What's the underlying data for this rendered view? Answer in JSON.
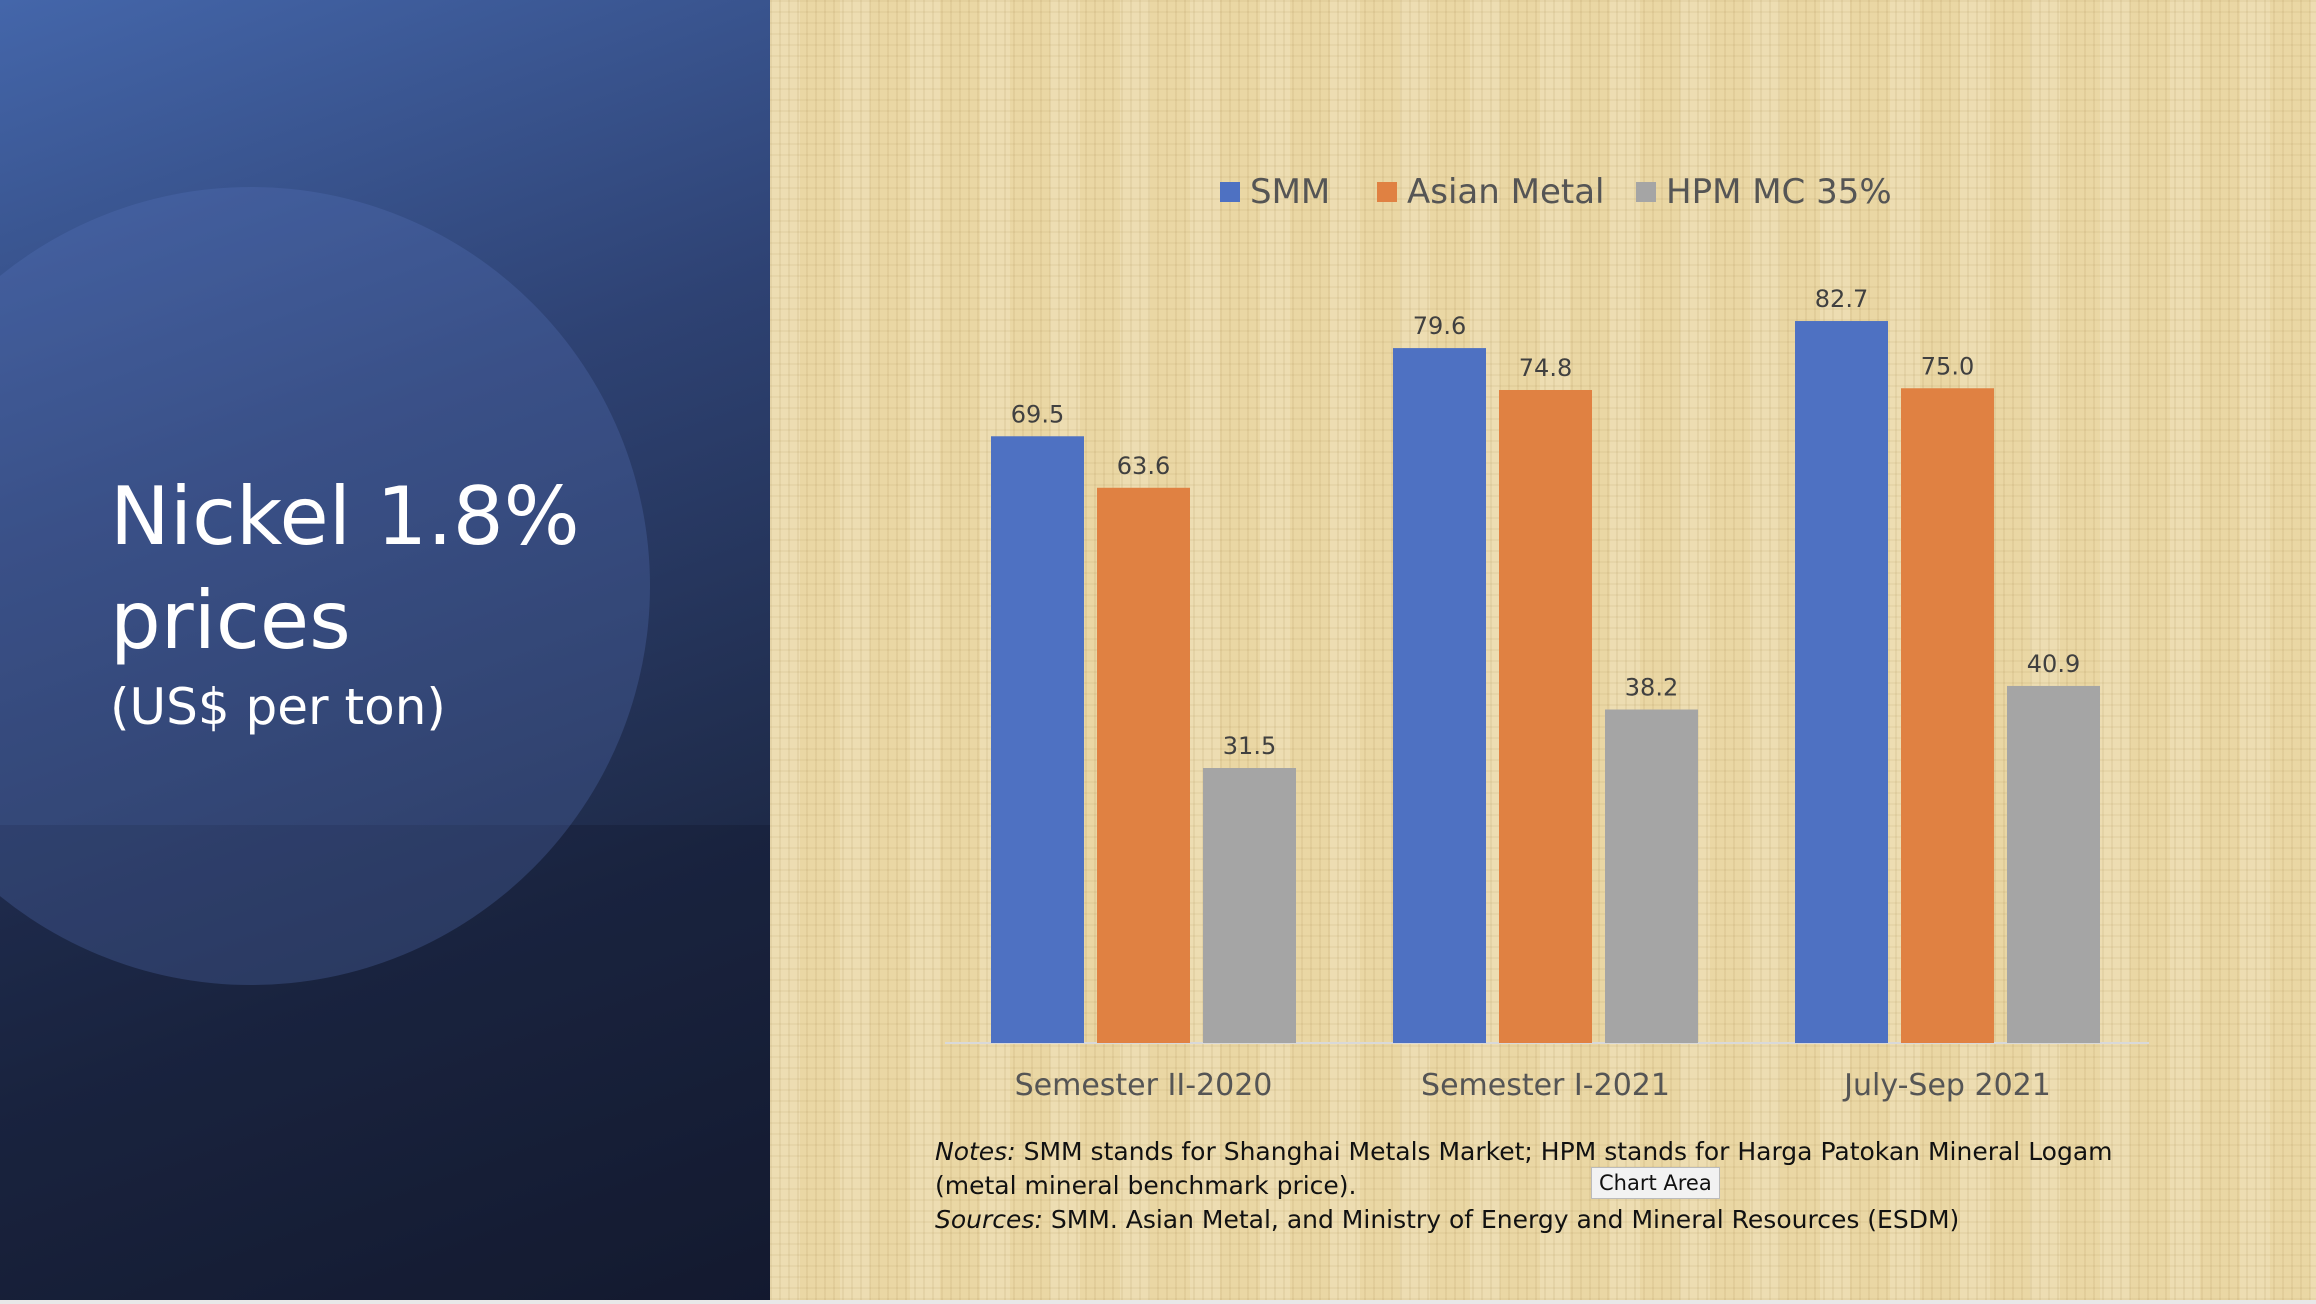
{
  "slide": {
    "title_line1": "Nickel 1.8%",
    "title_line2": "prices",
    "subtitle": "(US$ per ton)"
  },
  "notes": {
    "notes_label": "Notes:",
    "notes_text": " SMM stands for Shanghai Metals Market; HPM stands for Harga Patokan Mineral Logam (metal mineral benchmark price).",
    "sources_label": "Sources:",
    "sources_text": " SMM. Asian Metal, and Ministry of Energy and Mineral Resources (ESDM)"
  },
  "tooltip": "Chart Area",
  "chart_data": {
    "type": "bar",
    "title": "",
    "xlabel": "",
    "ylabel": "",
    "ylim": [
      0,
      90
    ],
    "grid": false,
    "legend": "top",
    "categories": [
      "Semester II-2020",
      "Semester I-2021",
      "July-Sep 2021"
    ],
    "series": [
      {
        "name": "SMM",
        "color": "#4e71c2",
        "values": [
          69.5,
          79.6,
          82.7
        ],
        "labels": [
          "69.5",
          "79.6",
          "82.7"
        ]
      },
      {
        "name": "Asian Metal",
        "color": "#e08142",
        "values": [
          63.6,
          74.8,
          75.0
        ],
        "labels": [
          "63.6",
          "74.8",
          "75.0"
        ]
      },
      {
        "name": "HPM MC 35%",
        "color": "#a5a5a5",
        "values": [
          31.5,
          38.2,
          40.9
        ],
        "labels": [
          "31.5",
          "38.2",
          "40.9"
        ]
      }
    ]
  }
}
